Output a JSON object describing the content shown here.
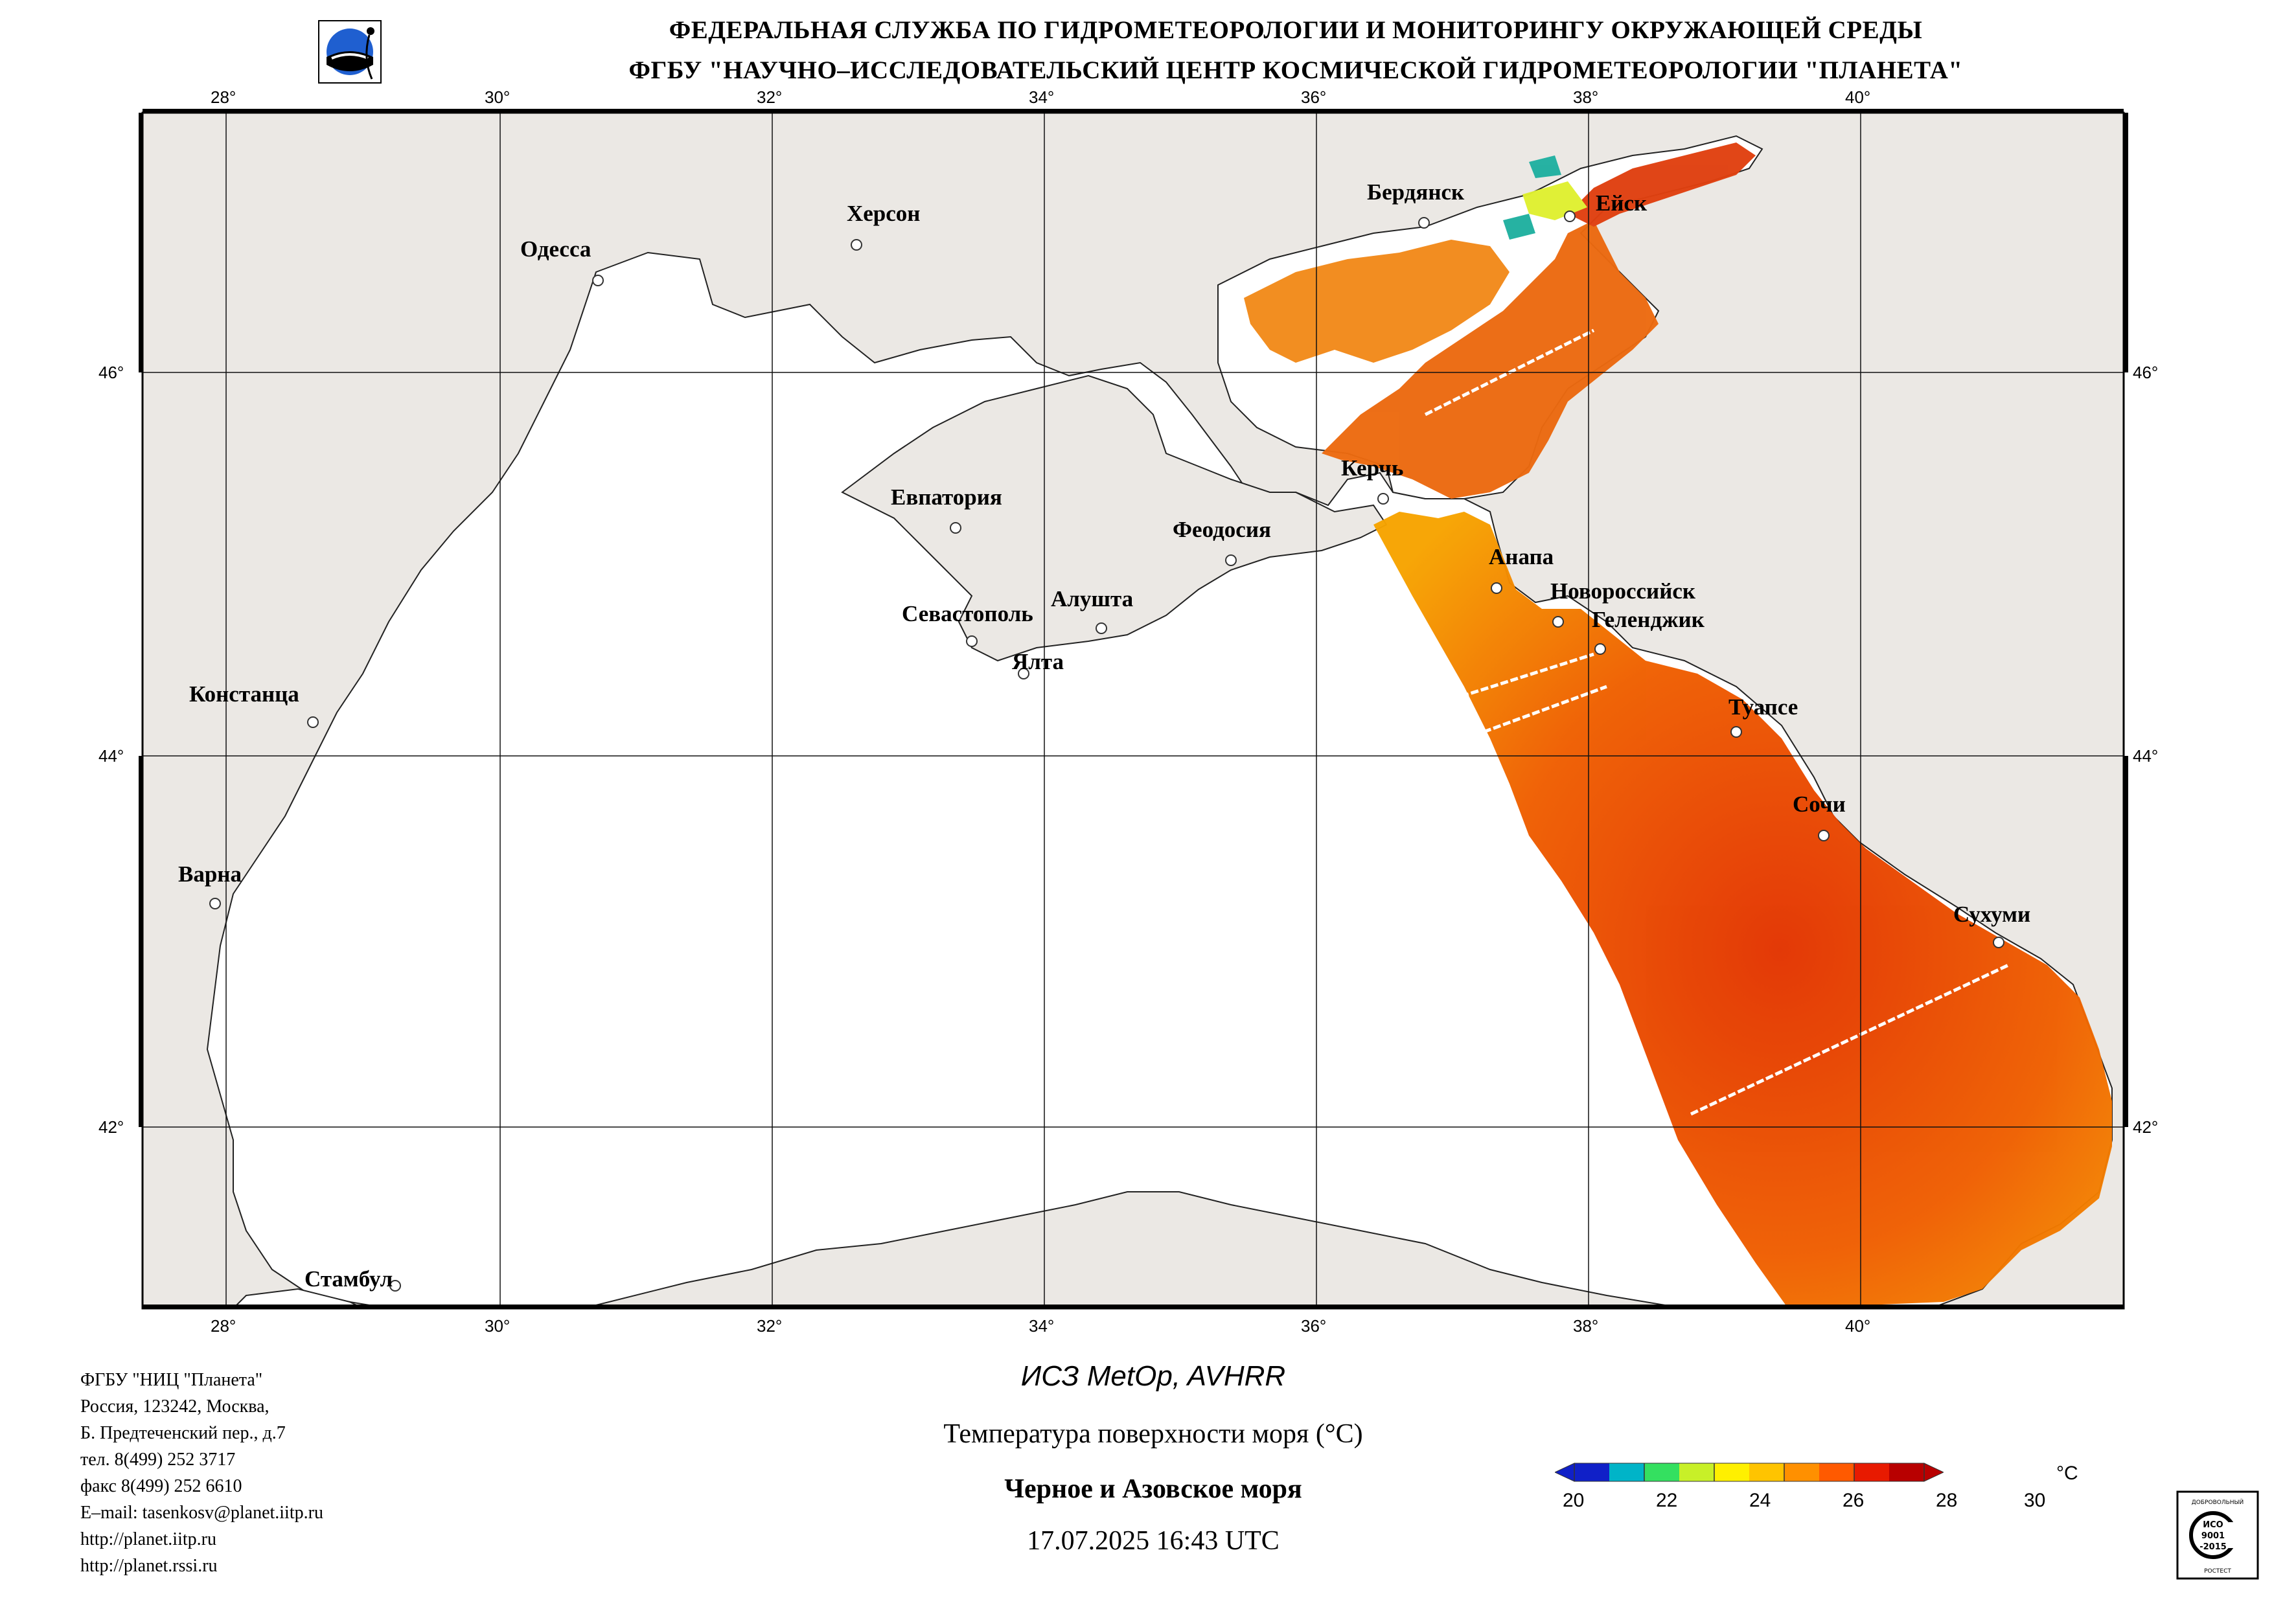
{
  "header": {
    "line1": "ФЕДЕРАЛЬНАЯ СЛУЖБА ПО ГИДРОМЕТЕОРОЛОГИИ И МОНИТОРИНГУ ОКРУЖАЮЩЕЙ СРЕДЫ",
    "line2": "ФГБУ \"НАУЧНО–ИССЛЕДОВАТЕЛЬСКИЙ ЦЕНТР КОСМИЧЕСКОЙ ГИДРОМЕТЕОРОЛОГИИ \"ПЛАНЕТА\""
  },
  "axes": {
    "lon_labels": [
      "28°",
      "30°",
      "32°",
      "34°",
      "36°",
      "38°",
      "40°"
    ],
    "lat_labels": [
      "46°",
      "44°",
      "42°"
    ]
  },
  "cities": [
    {
      "id": "odessa",
      "label": "Одесса"
    },
    {
      "id": "kherson",
      "label": "Херсон"
    },
    {
      "id": "berdyansk",
      "label": "Бердянск"
    },
    {
      "id": "yeysk",
      "label": "Ейск"
    },
    {
      "id": "kerch",
      "label": "Керчь"
    },
    {
      "id": "evpatoria",
      "label": "Евпатория"
    },
    {
      "id": "feodosia",
      "label": "Феодосия"
    },
    {
      "id": "anapa",
      "label": "Анапа"
    },
    {
      "id": "novorossiysk",
      "label": "Новороссийск"
    },
    {
      "id": "gelendzhik",
      "label": "Геленджик"
    },
    {
      "id": "alushta",
      "label": "Алушта"
    },
    {
      "id": "sevastopol",
      "label": "Севастополь"
    },
    {
      "id": "yalta",
      "label": "Ялта"
    },
    {
      "id": "constanta",
      "label": "Констанца"
    },
    {
      "id": "tuapse",
      "label": "Туапсе"
    },
    {
      "id": "sochi",
      "label": "Сочи"
    },
    {
      "id": "varna",
      "label": "Варна"
    },
    {
      "id": "sukhumi",
      "label": "Сухуми"
    },
    {
      "id": "istanbul",
      "label": "Стамбул"
    }
  ],
  "footer": {
    "org": [
      "ФГБУ \"НИЦ \"Планета\"",
      "Россия, 123242, Москва,",
      "Б. Предтеченский пер., д.7",
      "тел. 8(499) 252 3717",
      "факс 8(499) 252 6610",
      "E–mail: tasenkosv@planet.iitp.ru",
      "http://planet.iitp.ru",
      "http://planet.rssi.ru"
    ],
    "satellite": "ИСЗ MetOp, AVHRR",
    "parameter": "Температура поверхности моря (°С)",
    "region": "Черное и Азовское моря",
    "datetime": "17.07.2025 16:43 UTC"
  },
  "colorbar": {
    "unit": "°C",
    "ticks": [
      "20",
      "22",
      "24",
      "26",
      "28",
      "30"
    ],
    "colors": [
      "#1020c8",
      "#00b4c8",
      "#34e060",
      "#c8f028",
      "#fff000",
      "#ffc400",
      "#ff9000",
      "#ff5a00",
      "#e81a00",
      "#b80000"
    ]
  },
  "badge": {
    "top_text": "ДОБРОВОЛЬНЫЙ",
    "line1": "ИСО",
    "line2": "9001",
    "line3": "-2015",
    "bottom_text": "РОСТЕСТ"
  }
}
